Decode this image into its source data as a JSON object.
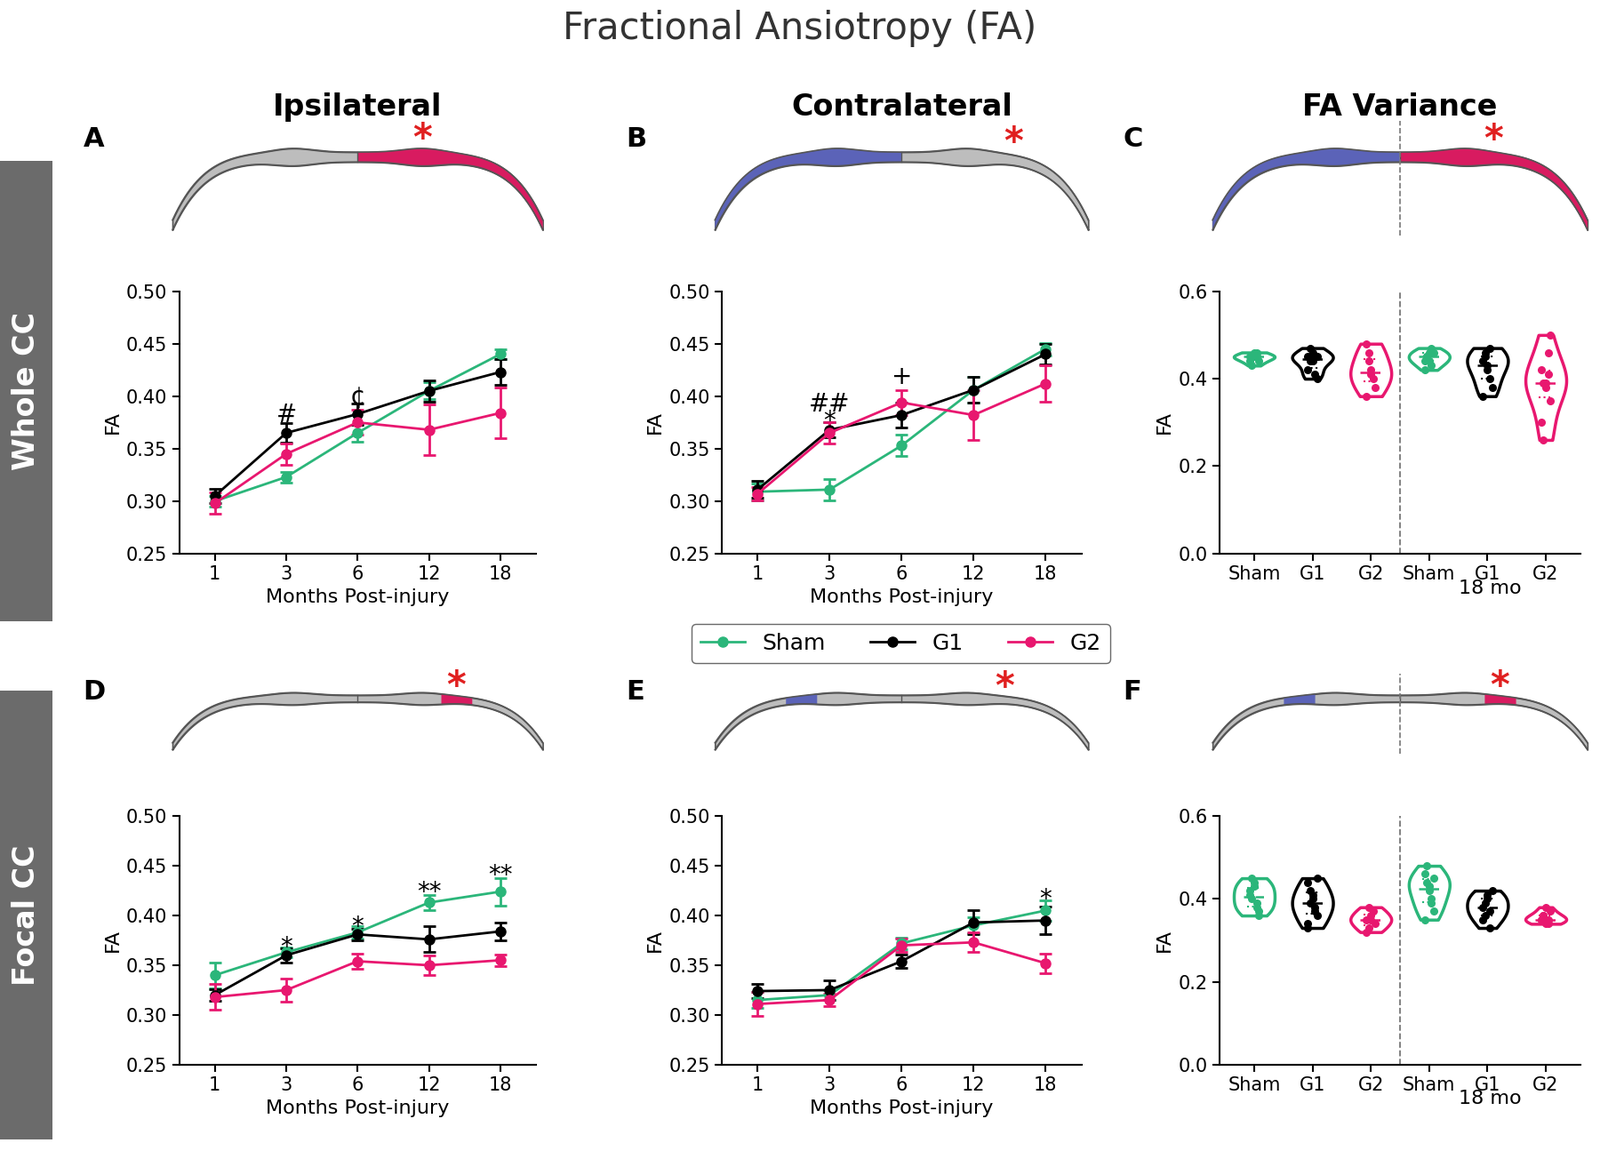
{
  "title": "Fractional Ansiotropy (FA)",
  "column_titles": [
    "Ipsilateral",
    "Contralateral",
    "FA Variance"
  ],
  "row_titles": [
    "Whole CC",
    "Focal CC"
  ],
  "injury_marker": "*",
  "chart_data": [
    {
      "panel": "A",
      "type": "line",
      "x": [
        "1",
        "3",
        "6",
        "12",
        "18"
      ],
      "xlabel": "Months Post-injury",
      "ylabel": "FA",
      "ylim": [
        0.25,
        0.5
      ],
      "yticks": [
        {
          "value": 0.25,
          "label": "0.25"
        },
        {
          "value": 0.3,
          "label": "0.30"
        },
        {
          "value": 0.35,
          "label": "0.35"
        },
        {
          "value": 0.4,
          "label": "0.40"
        },
        {
          "value": 0.45,
          "label": "0.45"
        },
        {
          "value": 0.5,
          "label": "0.50"
        }
      ],
      "series": [
        {
          "name": "Sham",
          "color": "#2bb67a",
          "marker": "o",
          "values": [
            0.3,
            0.323,
            0.365,
            0.405,
            0.44
          ],
          "errors": [
            0.005,
            0.005,
            0.008,
            0.008,
            0.005
          ]
        },
        {
          "name": "G1",
          "color": "#000000",
          "marker": "o",
          "values": [
            0.305,
            0.365,
            0.383,
            0.405,
            0.423
          ],
          "errors": [
            0.007,
            0.009,
            0.01,
            0.01,
            0.012
          ]
        },
        {
          "name": "G2",
          "color": "#e8176f",
          "marker": "o",
          "values": [
            0.298,
            0.345,
            0.375,
            0.368,
            0.384
          ],
          "errors": [
            0.01,
            0.01,
            0.012,
            0.024,
            0.024
          ]
        }
      ],
      "annotations": [
        {
          "text": "#",
          "x": "3",
          "y": 0.382
        },
        {
          "text": "¢",
          "x": "6",
          "y": 0.398
        }
      ]
    },
    {
      "panel": "B",
      "type": "line",
      "x": [
        "1",
        "3",
        "6",
        "12",
        "18"
      ],
      "xlabel": "Months Post-injury",
      "ylabel": "FA",
      "ylim": [
        0.25,
        0.5
      ],
      "yticks": [
        {
          "value": 0.25,
          "label": "0.25"
        },
        {
          "value": 0.3,
          "label": "0.30"
        },
        {
          "value": 0.35,
          "label": "0.35"
        },
        {
          "value": 0.4,
          "label": "0.40"
        },
        {
          "value": 0.45,
          "label": "0.45"
        },
        {
          "value": 0.5,
          "label": "0.50"
        }
      ],
      "series": [
        {
          "name": "Sham",
          "color": "#2bb67a",
          "marker": "o",
          "values": [
            0.309,
            0.311,
            0.353,
            0.406,
            0.445
          ],
          "errors": [
            0.008,
            0.01,
            0.01,
            0.012,
            0.006
          ]
        },
        {
          "name": "G1",
          "color": "#000000",
          "marker": "o",
          "values": [
            0.311,
            0.368,
            0.382,
            0.406,
            0.44
          ],
          "errors": [
            0.008,
            0.007,
            0.012,
            0.012,
            0.01
          ]
        },
        {
          "name": "G2",
          "color": "#e8176f",
          "marker": "o",
          "values": [
            0.307,
            0.365,
            0.394,
            0.382,
            0.412
          ],
          "errors": [
            0.006,
            0.01,
            0.012,
            0.024,
            0.017
          ]
        }
      ],
      "annotations": [
        {
          "text": "##",
          "x": "3",
          "y": 0.392
        },
        {
          "text": "*",
          "x": "3",
          "y": 0.376
        },
        {
          "text": "+",
          "x": "6",
          "y": 0.418
        }
      ]
    },
    {
      "panel": "C",
      "type": "violin",
      "categories": [
        "Sham",
        "G1",
        "G2",
        "Sham",
        "G1",
        "G2"
      ],
      "xlabel": "18 mo",
      "ylabel": "FA",
      "ylim": [
        0,
        0.6
      ],
      "yticks": [
        {
          "value": 0,
          "label": "0.0"
        },
        {
          "value": 0.2,
          "label": "0.2"
        },
        {
          "value": 0.4,
          "label": "0.4"
        },
        {
          "value": 0.6,
          "label": "0.6"
        }
      ],
      "groups": [
        {
          "color": "#2bb67a",
          "values": [
            0.44,
            0.45,
            0.45,
            0.46,
            0.44,
            0.45,
            0.43,
            0.46,
            0.45
          ]
        },
        {
          "color": "#000000",
          "values": [
            0.45,
            0.44,
            0.46,
            0.45,
            0.4,
            0.42,
            0.47,
            0.44,
            0.41,
            0.45
          ]
        },
        {
          "color": "#e8176f",
          "values": [
            0.48,
            0.46,
            0.42,
            0.4,
            0.38,
            0.36,
            0.44,
            0.41
          ]
        },
        {
          "color": "#2bb67a",
          "values": [
            0.44,
            0.45,
            0.46,
            0.43,
            0.46,
            0.42,
            0.45,
            0.44,
            0.47
          ]
        },
        {
          "color": "#000000",
          "values": [
            0.44,
            0.45,
            0.43,
            0.4,
            0.38,
            0.36,
            0.46,
            0.42,
            0.47
          ]
        },
        {
          "color": "#e8176f",
          "values": [
            0.42,
            0.39,
            0.38,
            0.46,
            0.35,
            0.3,
            0.26,
            0.39,
            0.41,
            0.5
          ]
        }
      ]
    },
    {
      "panel": "D",
      "type": "line",
      "x": [
        "1",
        "3",
        "6",
        "12",
        "18"
      ],
      "xlabel": "Months Post-injury",
      "ylabel": "FA",
      "ylim": [
        0.25,
        0.5
      ],
      "yticks": [
        {
          "value": 0.25,
          "label": "0.25"
        },
        {
          "value": 0.3,
          "label": "0.30"
        },
        {
          "value": 0.35,
          "label": "0.35"
        },
        {
          "value": 0.4,
          "label": "0.40"
        },
        {
          "value": 0.45,
          "label": "0.45"
        },
        {
          "value": 0.5,
          "label": "0.50"
        }
      ],
      "series": [
        {
          "name": "Sham",
          "color": "#2bb67a",
          "marker": "o",
          "values": [
            0.34,
            0.363,
            0.383,
            0.413,
            0.424
          ],
          "errors": [
            0.013,
            0.005,
            0.006,
            0.008,
            0.014
          ]
        },
        {
          "name": "G1",
          "color": "#000000",
          "marker": "o",
          "values": [
            0.32,
            0.36,
            0.381,
            0.376,
            0.384
          ],
          "errors": [
            0.006,
            0.007,
            0.006,
            0.013,
            0.009
          ]
        },
        {
          "name": "G2",
          "color": "#e8176f",
          "marker": "o",
          "values": [
            0.318,
            0.325,
            0.354,
            0.35,
            0.355
          ],
          "errors": [
            0.013,
            0.012,
            0.008,
            0.01,
            0.006
          ]
        }
      ],
      "annotations": [
        {
          "text": "*",
          "x": "3",
          "y": 0.368
        },
        {
          "text": "*",
          "x": "6",
          "y": 0.388
        },
        {
          "text": "**",
          "x": "12",
          "y": 0.423
        },
        {
          "text": "**",
          "x": "18",
          "y": 0.44
        }
      ]
    },
    {
      "panel": "E",
      "type": "line",
      "x": [
        "1",
        "3",
        "6",
        "12",
        "18"
      ],
      "xlabel": "Months Post-injury",
      "ylabel": "FA",
      "ylim": [
        0.25,
        0.5
      ],
      "yticks": [
        {
          "value": 0.25,
          "label": "0.25"
        },
        {
          "value": 0.3,
          "label": "0.30"
        },
        {
          "value": 0.35,
          "label": "0.35"
        },
        {
          "value": 0.4,
          "label": "0.40"
        },
        {
          "value": 0.45,
          "label": "0.45"
        },
        {
          "value": 0.5,
          "label": "0.50"
        }
      ],
      "series": [
        {
          "name": "Sham",
          "color": "#2bb67a",
          "marker": "o",
          "values": [
            0.315,
            0.32,
            0.372,
            0.39,
            0.405
          ],
          "errors": [
            0.008,
            0.005,
            0.006,
            0.008,
            0.01
          ]
        },
        {
          "name": "G1",
          "color": "#000000",
          "marker": "o",
          "values": [
            0.324,
            0.325,
            0.354,
            0.393,
            0.395
          ],
          "errors": [
            0.007,
            0.01,
            0.007,
            0.012,
            0.014
          ]
        },
        {
          "name": "G2",
          "color": "#e8176f",
          "marker": "o",
          "values": [
            0.311,
            0.315,
            0.37,
            0.373,
            0.352
          ],
          "errors": [
            0.012,
            0.006,
            0.007,
            0.01,
            0.01
          ]
        }
      ],
      "annotations": [
        {
          "text": "*",
          "x": "18",
          "y": 0.416
        }
      ]
    },
    {
      "panel": "F",
      "type": "violin",
      "categories": [
        "Sham",
        "G1",
        "G2",
        "Sham",
        "G1",
        "G2"
      ],
      "xlabel": "18 mo",
      "ylabel": "FA",
      "ylim": [
        0,
        0.6
      ],
      "yticks": [
        {
          "value": 0,
          "label": "0.0"
        },
        {
          "value": 0.2,
          "label": "0.2"
        },
        {
          "value": 0.4,
          "label": "0.4"
        },
        {
          "value": 0.6,
          "label": "0.6"
        }
      ],
      "groups": [
        {
          "color": "#2bb67a",
          "values": [
            0.42,
            0.4,
            0.44,
            0.38,
            0.36,
            0.41,
            0.45,
            0.43,
            0.39,
            0.37
          ]
        },
        {
          "color": "#000000",
          "values": [
            0.44,
            0.42,
            0.4,
            0.38,
            0.36,
            0.33,
            0.39,
            0.41,
            0.37,
            0.45,
            0.34
          ]
        },
        {
          "color": "#e8176f",
          "values": [
            0.35,
            0.33,
            0.36,
            0.37,
            0.34,
            0.32,
            0.38,
            0.35
          ]
        },
        {
          "color": "#2bb67a",
          "values": [
            0.46,
            0.44,
            0.42,
            0.4,
            0.37,
            0.35,
            0.48,
            0.43,
            0.39,
            0.45
          ]
        },
        {
          "color": "#000000",
          "values": [
            0.38,
            0.36,
            0.4,
            0.37,
            0.42,
            0.35,
            0.39,
            0.41,
            0.33
          ]
        },
        {
          "color": "#e8176f",
          "values": [
            0.35,
            0.36,
            0.34,
            0.35,
            0.37,
            0.35,
            0.36,
            0.38,
            0.34
          ]
        }
      ]
    }
  ]
}
